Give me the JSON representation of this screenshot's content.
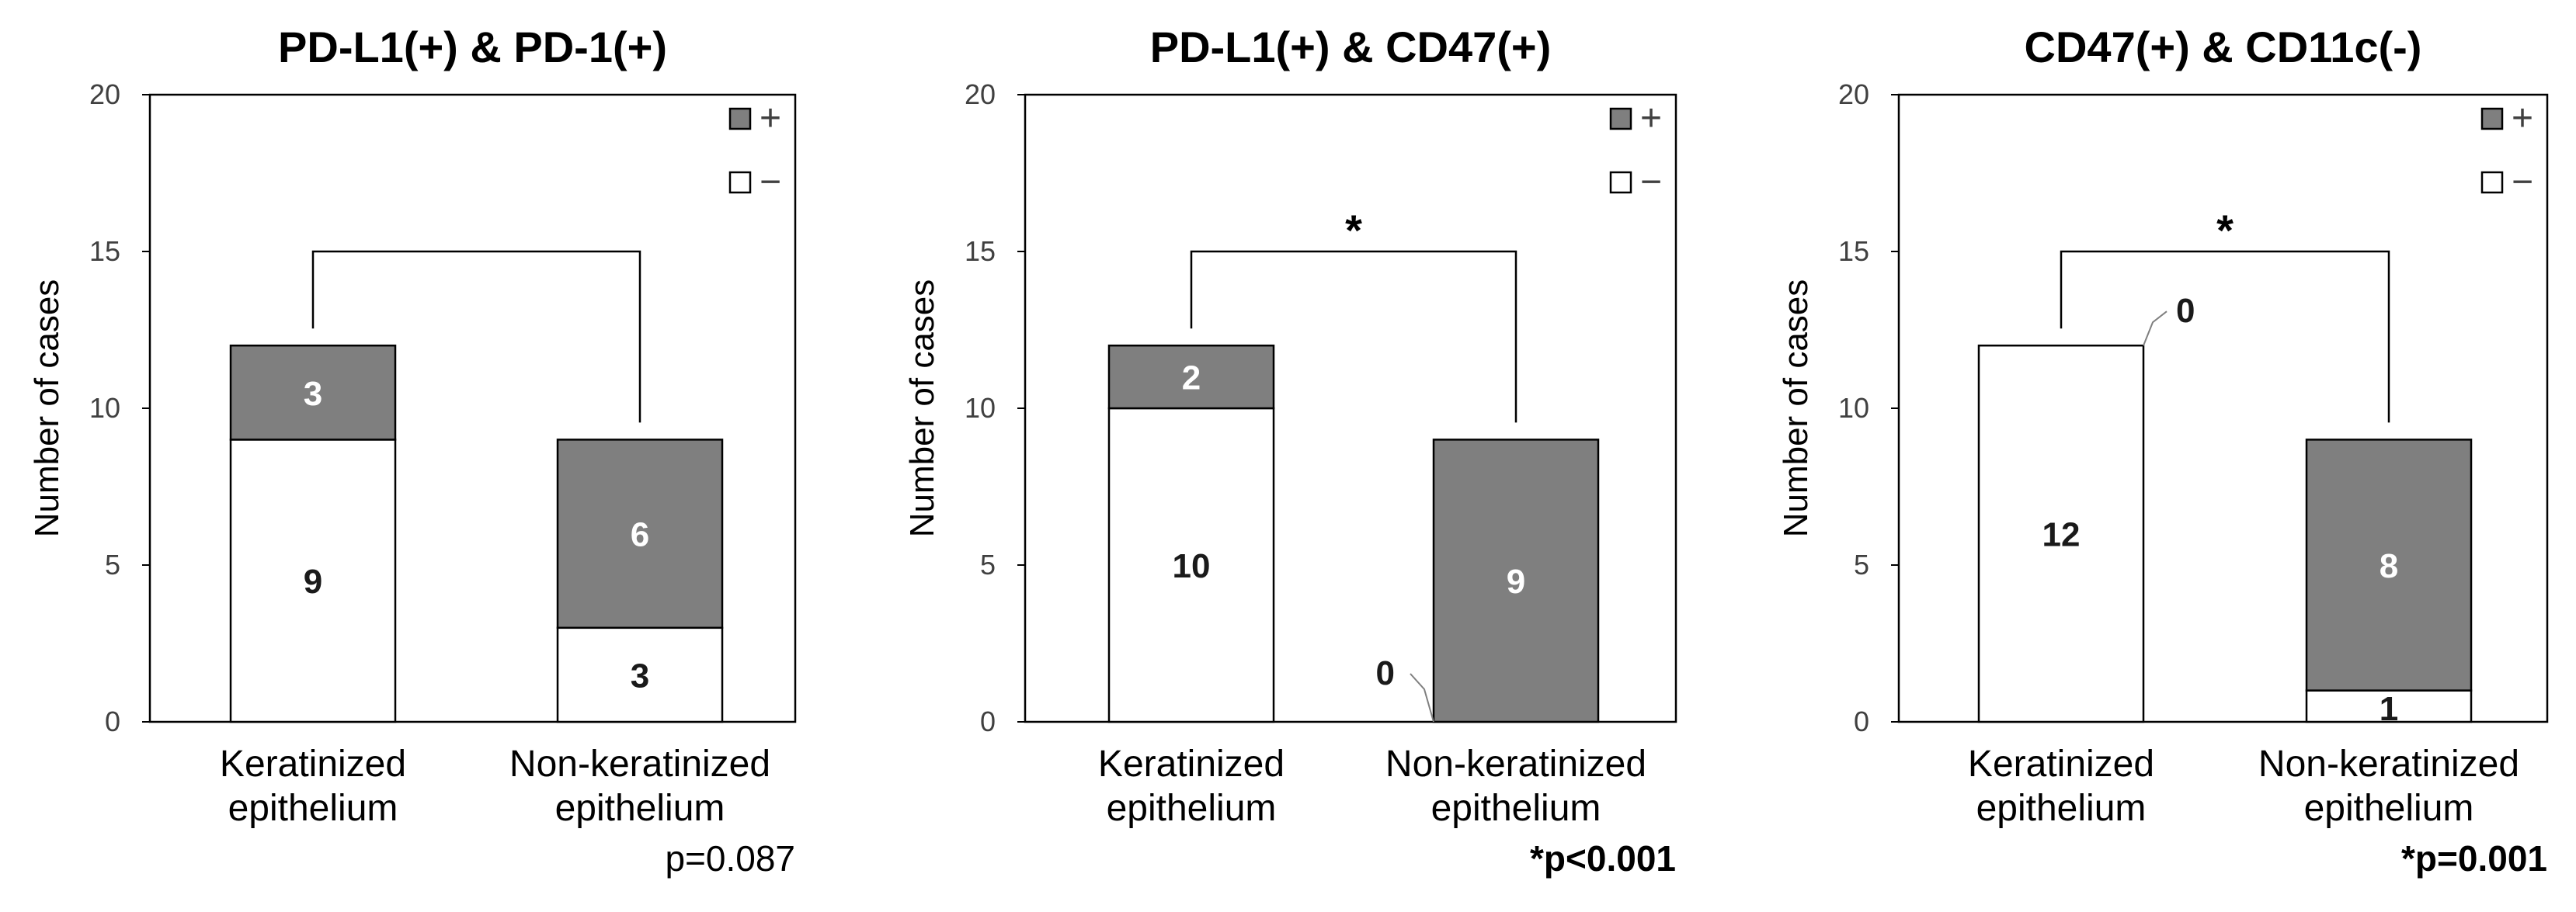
{
  "chart_data": [
    {
      "type": "bar",
      "stacked": true,
      "title": "PD-L1(+) & PD-1(+)",
      "ylabel": "Number of cases",
      "ylim": [
        0,
        20
      ],
      "yticks": [
        0,
        5,
        10,
        15,
        20
      ],
      "categories": [
        {
          "line1": "Keratinized",
          "line2": "epithelium"
        },
        {
          "line1": "Non-keratinized",
          "line2": "epithelium"
        }
      ],
      "series": [
        {
          "name": "−",
          "color": "#ffffff",
          "values": [
            9,
            3
          ]
        },
        {
          "name": "+",
          "color": "#7f7f7f",
          "values": [
            3,
            6
          ]
        }
      ],
      "legend": [
        {
          "label": "+",
          "color": "#7f7f7f"
        },
        {
          "label": "−",
          "color": "#ffffff"
        }
      ],
      "significance": "",
      "pvalue": "p=0.087",
      "pvalue_bold": false,
      "zero_callouts": []
    },
    {
      "type": "bar",
      "stacked": true,
      "title": "PD-L1(+) & CD47(+)",
      "ylabel": "Number of cases",
      "ylim": [
        0,
        20
      ],
      "yticks": [
        0,
        5,
        10,
        15,
        20
      ],
      "categories": [
        {
          "line1": "Keratinized",
          "line2": "epithelium"
        },
        {
          "line1": "Non-keratinized",
          "line2": "epithelium"
        }
      ],
      "series": [
        {
          "name": "−",
          "color": "#ffffff",
          "values": [
            10,
            0
          ]
        },
        {
          "name": "+",
          "color": "#7f7f7f",
          "values": [
            2,
            9
          ]
        }
      ],
      "legend": [
        {
          "label": "+",
          "color": "#7f7f7f"
        },
        {
          "label": "−",
          "color": "#ffffff"
        }
      ],
      "significance": "*",
      "pvalue": "*p<0.001",
      "pvalue_bold": true,
      "zero_callouts": [
        {
          "category": 1,
          "series": 0,
          "label": "0",
          "side": "left"
        }
      ]
    },
    {
      "type": "bar",
      "stacked": true,
      "title": "CD47(+) & CD11c(-)",
      "ylabel": "Number of cases",
      "ylim": [
        0,
        20
      ],
      "yticks": [
        0,
        5,
        10,
        15,
        20
      ],
      "categories": [
        {
          "line1": "Keratinized",
          "line2": "epithelium"
        },
        {
          "line1": "Non-keratinized",
          "line2": "epithelium"
        }
      ],
      "series": [
        {
          "name": "−",
          "color": "#ffffff",
          "values": [
            12,
            1
          ]
        },
        {
          "name": "+",
          "color": "#7f7f7f",
          "values": [
            0,
            8
          ]
        }
      ],
      "legend": [
        {
          "label": "+",
          "color": "#7f7f7f"
        },
        {
          "label": "−",
          "color": "#ffffff"
        }
      ],
      "significance": "*",
      "pvalue": "*p=0.001",
      "pvalue_bold": true,
      "zero_callouts": [
        {
          "category": 0,
          "series": 1,
          "label": "0",
          "side": "right"
        }
      ]
    }
  ]
}
